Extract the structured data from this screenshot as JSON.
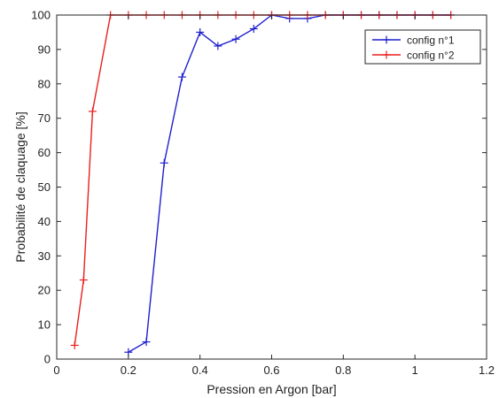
{
  "chart_data": {
    "type": "line",
    "xlabel": "Pression en Argon [bar]",
    "ylabel": "Probabilité de claquage [%]",
    "xlim": [
      0,
      1.2
    ],
    "ylim": [
      0,
      100
    ],
    "xticks": [
      0,
      0.2,
      0.4,
      0.6,
      0.8,
      1,
      1.2
    ],
    "xtick_labels": [
      "0",
      "0.2",
      "0.4",
      "0.6",
      "0.8",
      "1",
      "1.2"
    ],
    "yticks": [
      0,
      10,
      20,
      30,
      40,
      50,
      60,
      70,
      80,
      90,
      100
    ],
    "ytick_labels": [
      "0",
      "10",
      "20",
      "30",
      "40",
      "50",
      "60",
      "70",
      "80",
      "90",
      "100"
    ],
    "grid": false,
    "legend_position": "top-right",
    "marker": "+",
    "series": [
      {
        "name": "config n°1",
        "color": "#1f1fcf",
        "x": [
          0.2,
          0.25,
          0.3,
          0.35,
          0.4,
          0.45,
          0.5,
          0.55,
          0.6,
          0.65,
          0.7,
          0.75,
          0.8,
          0.85,
          0.9,
          0.95,
          1.0,
          1.05,
          1.1
        ],
        "y": [
          2,
          5,
          57,
          82,
          95,
          91,
          93,
          96,
          100,
          99,
          99,
          100,
          100,
          100,
          100,
          100,
          100,
          100,
          100
        ]
      },
      {
        "name": "config n°2",
        "color": "#e8201f",
        "x": [
          0.05,
          0.075,
          0.1,
          0.15,
          0.2,
          0.25,
          0.3,
          0.35,
          0.4,
          0.45,
          0.5,
          0.55,
          0.6,
          0.65,
          0.7,
          0.75,
          0.8,
          0.85,
          0.9,
          0.95,
          1.0,
          1.05,
          1.1
        ],
        "y": [
          4,
          23,
          72,
          100,
          100,
          100,
          100,
          100,
          100,
          100,
          100,
          100,
          100,
          100,
          100,
          100,
          100,
          100,
          100,
          100,
          100,
          100,
          100
        ]
      }
    ]
  }
}
